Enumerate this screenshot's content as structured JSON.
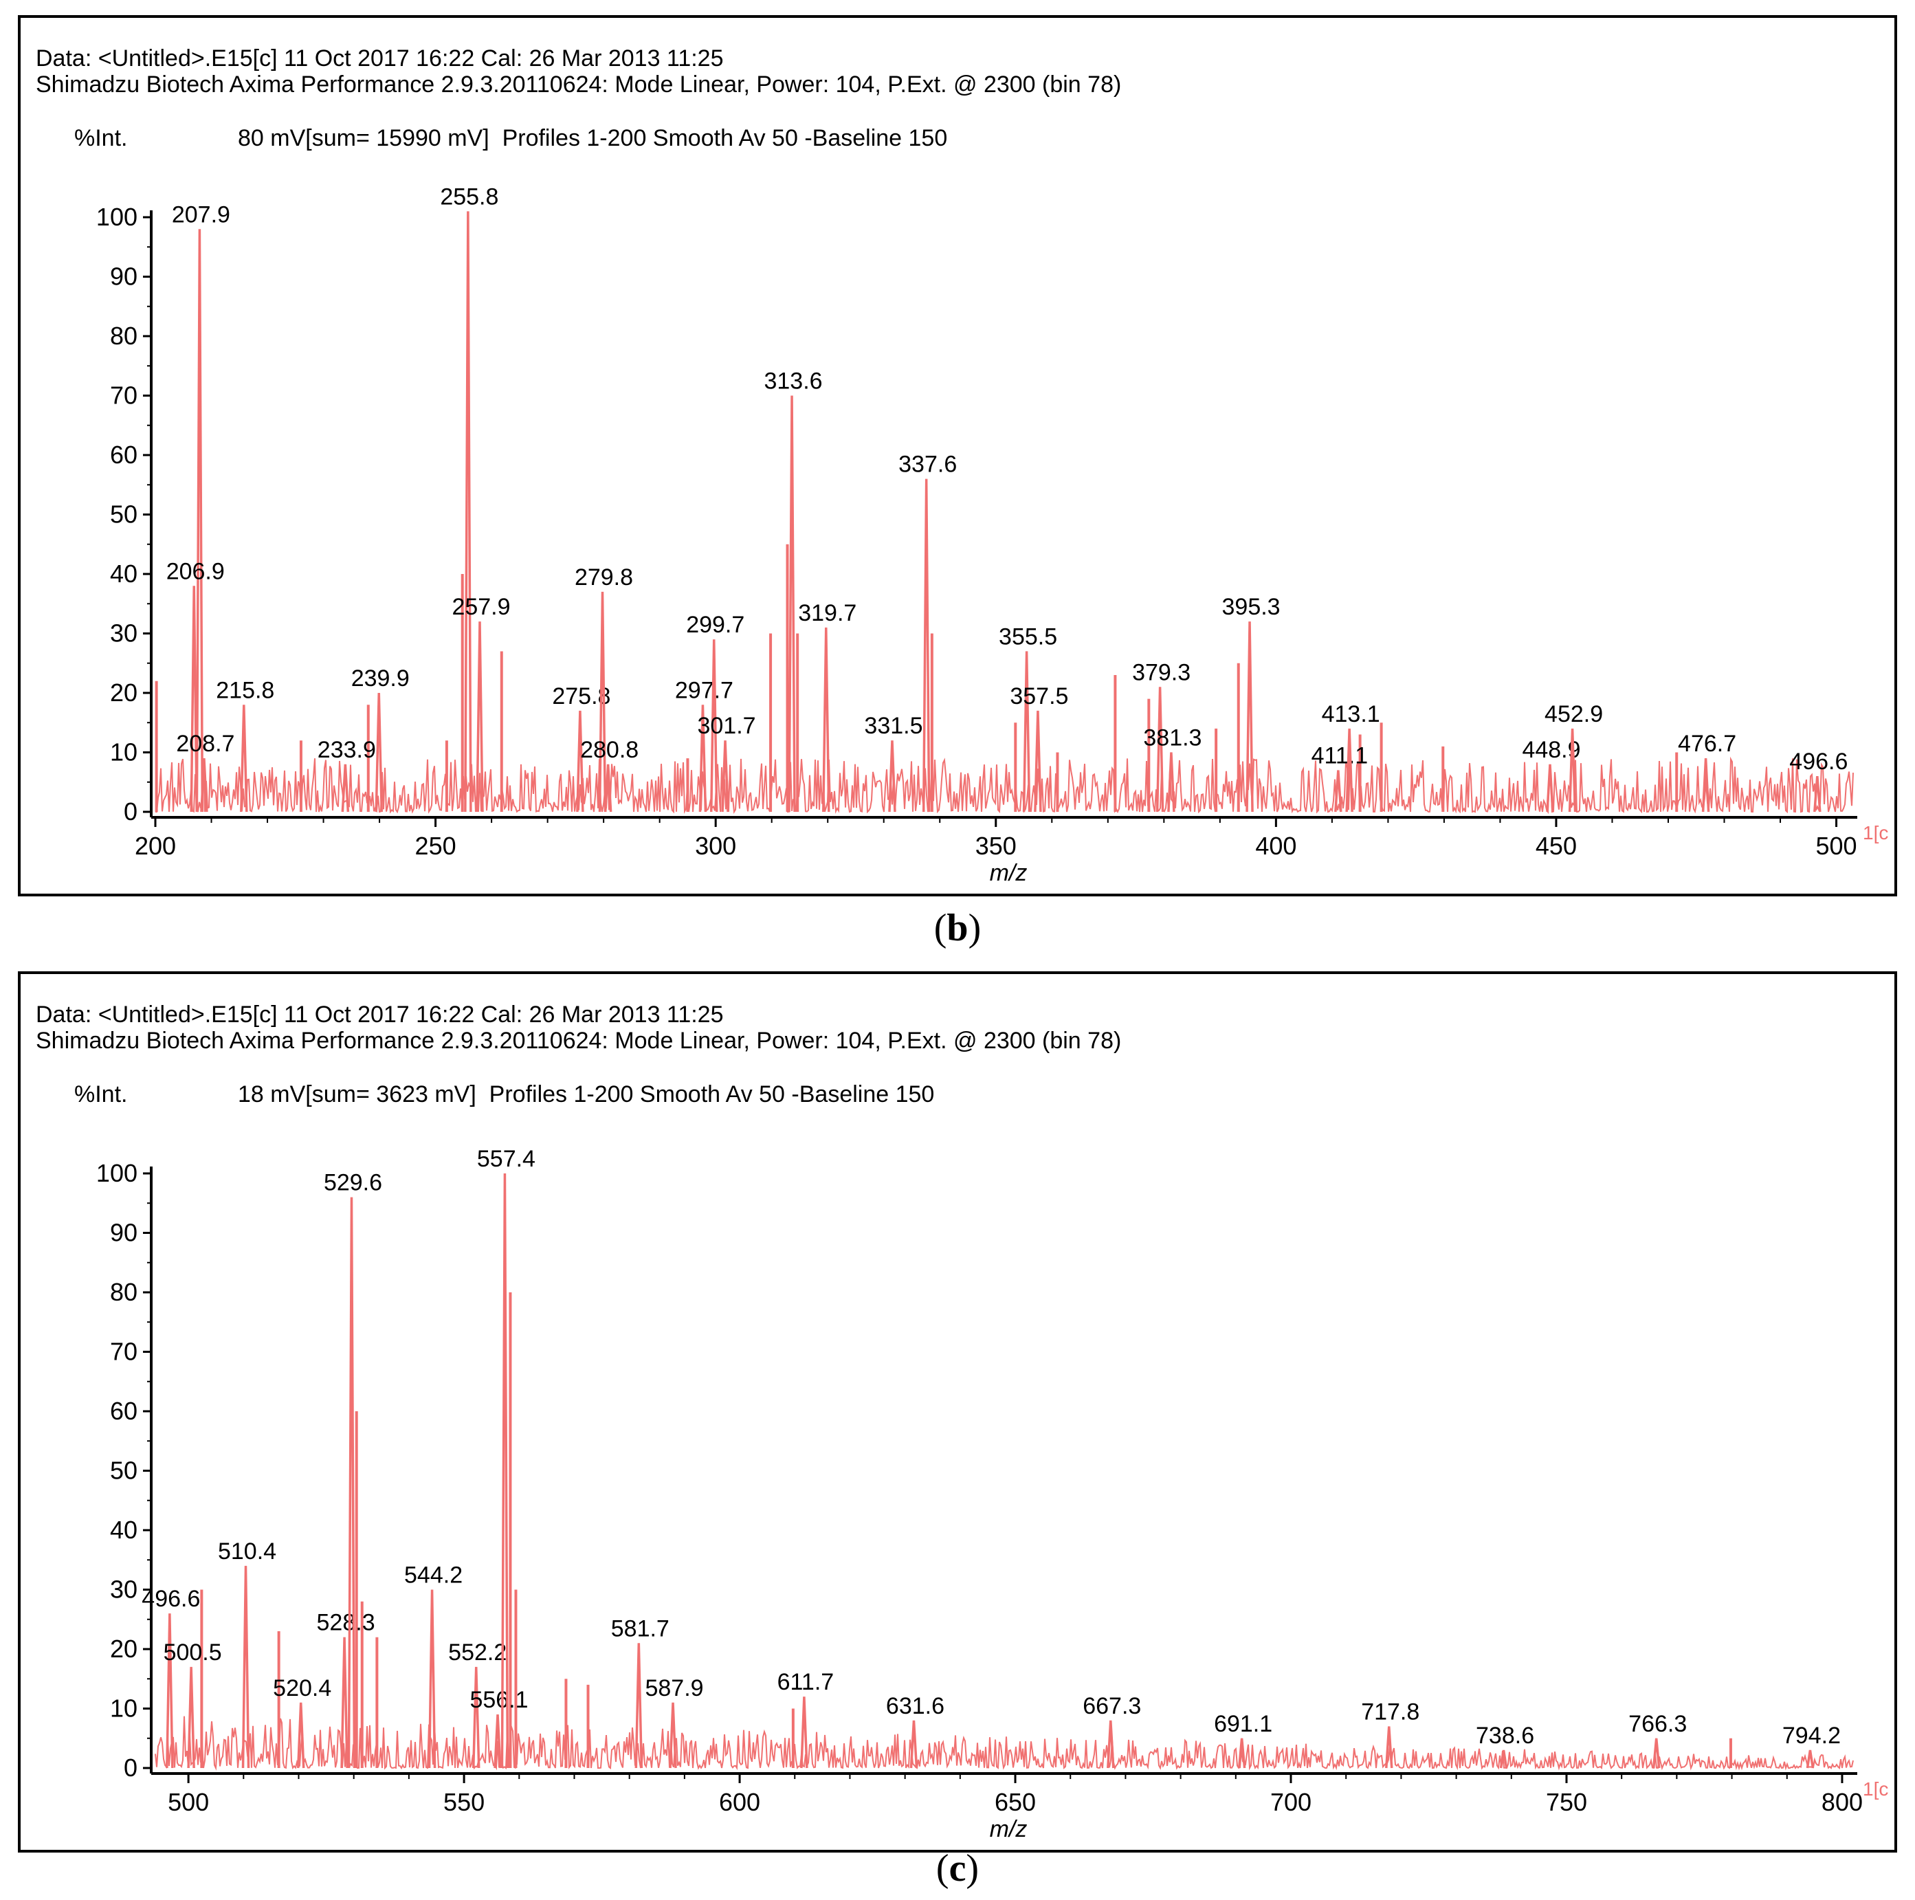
{
  "colors": {
    "trace": "#f07070",
    "axis": "#000000",
    "frame": "#000000"
  },
  "chart_data": [
    {
      "id": "b",
      "type": "line",
      "caption_letter": "b",
      "caption_open": "(",
      "caption_close": ")",
      "header_line1": "Data: <Untitled>.E15[c] 11 Oct 2017 16:22 Cal: 26 Mar 2013 11:25",
      "header_line2": "Shimadzu Biotech Axima Performance 2.9.3.20110624: Mode Linear, Power: 104, P.Ext. @ 2300 (bin 78)",
      "ylabel": "%Int.",
      "acquisition": "80 mV[sum= 15990 mV]  Profiles 1-200 Smooth Av 50 -Baseline 150",
      "xlabel": "m/z",
      "xlim": [
        200,
        503
      ],
      "ylim": [
        0,
        100
      ],
      "xticks": [
        200,
        250,
        300,
        350,
        400,
        450,
        500
      ],
      "yticks": [
        0,
        10,
        20,
        30,
        40,
        50,
        60,
        70,
        80,
        90,
        100
      ],
      "right_marker": "1[c",
      "peaks": [
        {
          "x": 207.9,
          "y": 98,
          "label": "207.9"
        },
        {
          "x": 206.9,
          "y": 38,
          "label": "206.9"
        },
        {
          "x": 208.7,
          "y": 9,
          "label": "208.7"
        },
        {
          "x": 215.8,
          "y": 18,
          "label": "215.8"
        },
        {
          "x": 233.9,
          "y": 8,
          "label": "233.9"
        },
        {
          "x": 239.9,
          "y": 20,
          "label": "239.9"
        },
        {
          "x": 255.8,
          "y": 101,
          "label": "255.8"
        },
        {
          "x": 257.9,
          "y": 32,
          "label": "257.9"
        },
        {
          "x": 275.8,
          "y": 17,
          "label": "275.8"
        },
        {
          "x": 279.8,
          "y": 37,
          "label": "279.8"
        },
        {
          "x": 280.8,
          "y": 8,
          "label": "280.8"
        },
        {
          "x": 297.7,
          "y": 18,
          "label": "297.7"
        },
        {
          "x": 299.7,
          "y": 29,
          "label": "299.7"
        },
        {
          "x": 301.7,
          "y": 12,
          "label": "301.7"
        },
        {
          "x": 313.6,
          "y": 70,
          "label": "313.6"
        },
        {
          "x": 319.7,
          "y": 31,
          "label": "319.7"
        },
        {
          "x": 331.5,
          "y": 12,
          "label": "331.5"
        },
        {
          "x": 337.6,
          "y": 56,
          "label": "337.6"
        },
        {
          "x": 355.5,
          "y": 27,
          "label": "355.5"
        },
        {
          "x": 357.5,
          "y": 17,
          "label": "357.5"
        },
        {
          "x": 379.3,
          "y": 21,
          "label": "379.3"
        },
        {
          "x": 381.3,
          "y": 10,
          "label": "381.3"
        },
        {
          "x": 395.3,
          "y": 32,
          "label": "395.3"
        },
        {
          "x": 411.1,
          "y": 7,
          "label": "411.1"
        },
        {
          "x": 413.1,
          "y": 14,
          "label": "413.1"
        },
        {
          "x": 448.9,
          "y": 8,
          "label": "448.9"
        },
        {
          "x": 452.9,
          "y": 14,
          "label": "452.9"
        },
        {
          "x": 476.7,
          "y": 9,
          "label": "476.7"
        },
        {
          "x": 496.6,
          "y": 6,
          "label": "496.6"
        }
      ],
      "minor_peaks": [
        {
          "x": 200.2,
          "y": 22
        },
        {
          "x": 226,
          "y": 12
        },
        {
          "x": 238,
          "y": 18
        },
        {
          "x": 252,
          "y": 12
        },
        {
          "x": 254.8,
          "y": 40
        },
        {
          "x": 261.8,
          "y": 27
        },
        {
          "x": 295,
          "y": 9
        },
        {
          "x": 309.8,
          "y": 30
        },
        {
          "x": 312.8,
          "y": 45
        },
        {
          "x": 314.6,
          "y": 30
        },
        {
          "x": 338.6,
          "y": 30
        },
        {
          "x": 353.5,
          "y": 15
        },
        {
          "x": 361,
          "y": 10
        },
        {
          "x": 371.3,
          "y": 23
        },
        {
          "x": 377.3,
          "y": 19
        },
        {
          "x": 389.3,
          "y": 14
        },
        {
          "x": 393.3,
          "y": 25
        },
        {
          "x": 415,
          "y": 13
        },
        {
          "x": 418.8,
          "y": 15
        },
        {
          "x": 429.8,
          "y": 11
        },
        {
          "x": 471.5,
          "y": 10
        }
      ]
    },
    {
      "id": "c",
      "type": "line",
      "caption_letter": "c",
      "caption_open": "(",
      "caption_close": ")",
      "header_line1": "Data: <Untitled>.E15[c] 11 Oct 2017 16:22 Cal: 26 Mar 2013 11:25",
      "header_line2": "Shimadzu Biotech Axima Performance 2.9.3.20110624: Mode Linear, Power: 104, P.Ext. @ 2300 (bin 78)",
      "ylabel": "%Int.",
      "acquisition": "18 mV[sum= 3623 mV]  Profiles 1-200 Smooth Av 50 -Baseline 150",
      "xlabel": "m/z",
      "xlim": [
        494,
        802
      ],
      "ylim": [
        0,
        100
      ],
      "xticks": [
        500,
        550,
        600,
        650,
        700,
        750,
        800
      ],
      "yticks": [
        0,
        10,
        20,
        30,
        40,
        50,
        60,
        70,
        80,
        90,
        100
      ],
      "right_marker": "1[c",
      "peaks": [
        {
          "x": 496.6,
          "y": 26,
          "label": "496.6"
        },
        {
          "x": 500.5,
          "y": 17,
          "label": "500.5"
        },
        {
          "x": 510.4,
          "y": 34,
          "label": "510.4"
        },
        {
          "x": 520.4,
          "y": 11,
          "label": "520.4"
        },
        {
          "x": 528.3,
          "y": 22,
          "label": "528.3"
        },
        {
          "x": 529.6,
          "y": 96,
          "label": "529.6"
        },
        {
          "x": 544.2,
          "y": 30,
          "label": "544.2"
        },
        {
          "x": 552.2,
          "y": 17,
          "label": "552.2"
        },
        {
          "x": 556.1,
          "y": 9,
          "label": "556.1"
        },
        {
          "x": 557.4,
          "y": 100,
          "label": "557.4"
        },
        {
          "x": 581.7,
          "y": 21,
          "label": "581.7"
        },
        {
          "x": 587.9,
          "y": 11,
          "label": "587.9"
        },
        {
          "x": 611.7,
          "y": 12,
          "label": "611.7"
        },
        {
          "x": 631.6,
          "y": 8,
          "label": "631.6"
        },
        {
          "x": 667.3,
          "y": 8,
          "label": "667.3"
        },
        {
          "x": 691.1,
          "y": 5,
          "label": "691.1"
        },
        {
          "x": 717.8,
          "y": 7,
          "label": "717.8"
        },
        {
          "x": 738.6,
          "y": 3,
          "label": "738.6"
        },
        {
          "x": 766.3,
          "y": 5,
          "label": "766.3"
        },
        {
          "x": 794.2,
          "y": 3,
          "label": "794.2"
        }
      ],
      "minor_peaks": [
        {
          "x": 502.4,
          "y": 30
        },
        {
          "x": 516.4,
          "y": 23
        },
        {
          "x": 530.5,
          "y": 60
        },
        {
          "x": 531.5,
          "y": 28
        },
        {
          "x": 534.2,
          "y": 22
        },
        {
          "x": 558.4,
          "y": 80
        },
        {
          "x": 559.4,
          "y": 30
        },
        {
          "x": 568.5,
          "y": 15
        },
        {
          "x": 572.5,
          "y": 14
        },
        {
          "x": 609.7,
          "y": 10
        },
        {
          "x": 779.8,
          "y": 5
        }
      ]
    }
  ]
}
